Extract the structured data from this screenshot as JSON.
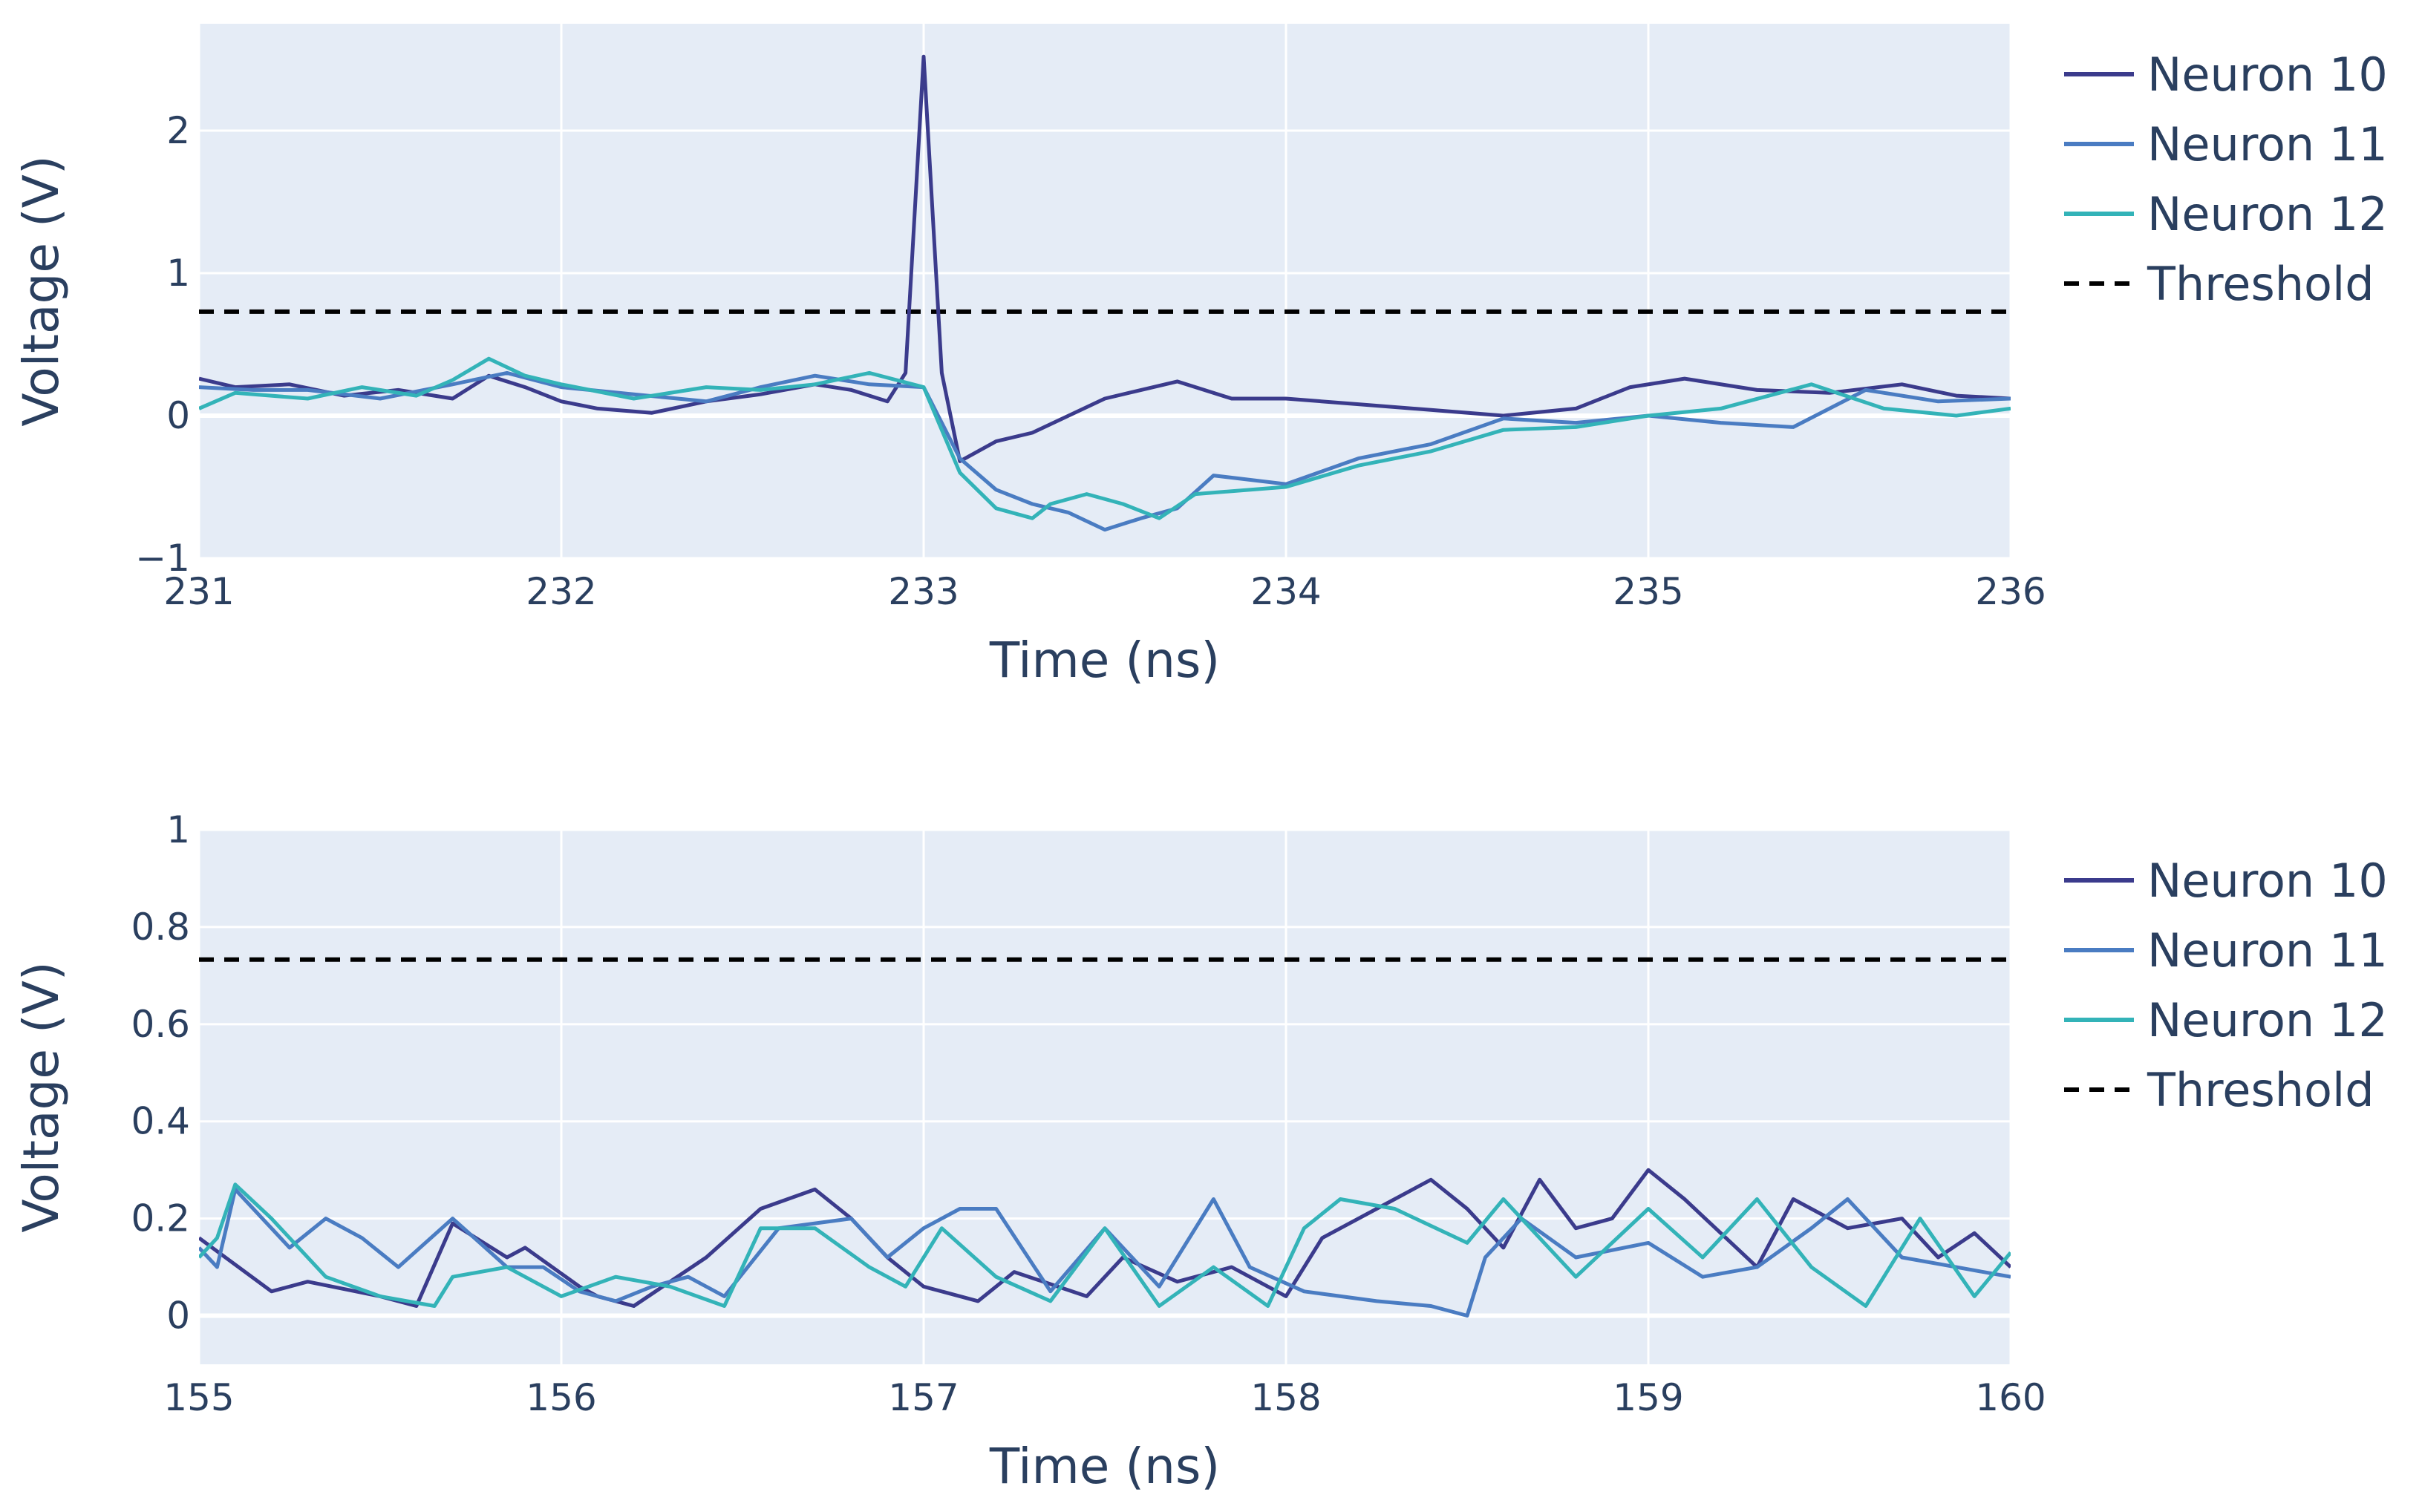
{
  "colors": {
    "plot_bg": "#e5ecf6",
    "grid": "#ffffff",
    "text": "#2a3f5f",
    "neuron_10": "#3b3b8c",
    "neuron_11": "#4a7cc2",
    "neuron_12": "#33b3b8",
    "threshold": "#000000"
  },
  "chart_data": [
    {
      "type": "line",
      "xlabel": "Time (ns)",
      "ylabel": "Voltage (V)",
      "xlim": [
        231,
        236
      ],
      "ylim": [
        -1,
        2.75
      ],
      "xticks": [
        231,
        232,
        233,
        234,
        235,
        236
      ],
      "xtick_labels": [
        "231",
        "232",
        "233",
        "234",
        "235",
        "236"
      ],
      "yticks": [
        -1,
        0,
        1,
        2
      ],
      "ytick_labels": [
        "−1",
        "0",
        "1",
        "2"
      ],
      "grid": true,
      "legend_position": "top-right-outside",
      "threshold": {
        "name": "Threshold",
        "value": 0.73,
        "style": "dashed"
      },
      "series": [
        {
          "name": "Neuron 10",
          "color_key": "neuron_10",
          "x": [
            231.0,
            231.1,
            231.25,
            231.4,
            231.55,
            231.7,
            231.8,
            231.9,
            232.0,
            232.1,
            232.25,
            232.4,
            232.55,
            232.7,
            232.8,
            232.9,
            232.95,
            233.0,
            233.05,
            233.1,
            233.2,
            233.3,
            233.4,
            233.5,
            233.6,
            233.7,
            233.85,
            234.0,
            234.2,
            234.4,
            234.6,
            234.8,
            234.95,
            235.1,
            235.3,
            235.5,
            235.7,
            235.85,
            236.0
          ],
          "y": [
            0.26,
            0.2,
            0.22,
            0.14,
            0.18,
            0.12,
            0.28,
            0.2,
            0.1,
            0.05,
            0.02,
            0.1,
            0.15,
            0.22,
            0.18,
            0.1,
            0.3,
            2.52,
            0.3,
            -0.32,
            -0.18,
            -0.12,
            0.0,
            0.12,
            0.18,
            0.24,
            0.12,
            0.12,
            0.08,
            0.04,
            0.0,
            0.05,
            0.2,
            0.26,
            0.18,
            0.16,
            0.22,
            0.14,
            0.12
          ]
        },
        {
          "name": "Neuron 11",
          "color_key": "neuron_11",
          "x": [
            231.0,
            231.15,
            231.3,
            231.5,
            231.7,
            231.85,
            232.0,
            232.2,
            232.4,
            232.55,
            232.7,
            232.85,
            233.0,
            233.1,
            233.2,
            233.3,
            233.4,
            233.5,
            233.6,
            233.7,
            233.8,
            234.0,
            234.2,
            234.4,
            234.6,
            234.8,
            235.0,
            235.2,
            235.4,
            235.6,
            235.8,
            236.0
          ],
          "y": [
            0.2,
            0.18,
            0.18,
            0.12,
            0.22,
            0.3,
            0.2,
            0.15,
            0.1,
            0.2,
            0.28,
            0.22,
            0.2,
            -0.3,
            -0.52,
            -0.62,
            -0.68,
            -0.8,
            -0.72,
            -0.65,
            -0.42,
            -0.48,
            -0.3,
            -0.2,
            -0.02,
            -0.05,
            0.0,
            -0.05,
            -0.08,
            0.18,
            0.1,
            0.12
          ]
        },
        {
          "name": "Neuron 12",
          "color_key": "neuron_12",
          "x": [
            231.0,
            231.1,
            231.3,
            231.45,
            231.6,
            231.7,
            231.8,
            231.9,
            232.0,
            232.2,
            232.4,
            232.55,
            232.7,
            232.85,
            233.0,
            233.1,
            233.2,
            233.3,
            233.35,
            233.45,
            233.55,
            233.65,
            233.75,
            234.0,
            234.2,
            234.4,
            234.6,
            234.8,
            235.0,
            235.2,
            235.45,
            235.65,
            235.85,
            236.0
          ],
          "y": [
            0.05,
            0.16,
            0.12,
            0.2,
            0.14,
            0.25,
            0.4,
            0.28,
            0.22,
            0.12,
            0.2,
            0.18,
            0.22,
            0.3,
            0.2,
            -0.4,
            -0.65,
            -0.72,
            -0.62,
            -0.55,
            -0.62,
            -0.72,
            -0.55,
            -0.5,
            -0.35,
            -0.25,
            -0.1,
            -0.08,
            0.0,
            0.05,
            0.22,
            0.05,
            0.0,
            0.05
          ]
        }
      ]
    },
    {
      "type": "line",
      "xlabel": "Time (ns)",
      "ylabel": "Voltage (V)",
      "xlim": [
        155,
        160
      ],
      "ylim": [
        -0.1,
        1.0
      ],
      "xticks": [
        155,
        156,
        157,
        158,
        159,
        160
      ],
      "xtick_labels": [
        "155",
        "156",
        "157",
        "158",
        "159",
        "160"
      ],
      "yticks": [
        0,
        0.2,
        0.4,
        0.6,
        0.8,
        1
      ],
      "ytick_labels": [
        "0",
        "0.2",
        "0.4",
        "0.6",
        "0.8",
        "1"
      ],
      "grid": true,
      "legend_position": "top-right-outside",
      "threshold": {
        "name": "Threshold",
        "value": 0.733,
        "style": "dashed"
      },
      "series": [
        {
          "name": "Neuron 10",
          "color_key": "neuron_10",
          "x": [
            155.0,
            155.2,
            155.3,
            155.5,
            155.6,
            155.7,
            155.85,
            155.9,
            156.05,
            156.1,
            156.2,
            156.4,
            156.55,
            156.7,
            156.8,
            156.9,
            157.0,
            157.15,
            157.25,
            157.45,
            157.55,
            157.7,
            157.85,
            158.0,
            158.1,
            158.3,
            158.4,
            158.5,
            158.6,
            158.7,
            158.8,
            158.9,
            159.0,
            159.1,
            159.3,
            159.4,
            159.55,
            159.7,
            159.8,
            159.9,
            160.0
          ],
          "y": [
            0.16,
            0.05,
            0.07,
            0.04,
            0.02,
            0.19,
            0.12,
            0.14,
            0.06,
            0.04,
            0.02,
            0.12,
            0.22,
            0.26,
            0.2,
            0.12,
            0.06,
            0.03,
            0.09,
            0.04,
            0.12,
            0.07,
            0.1,
            0.04,
            0.16,
            0.24,
            0.28,
            0.22,
            0.14,
            0.28,
            0.18,
            0.2,
            0.3,
            0.24,
            0.1,
            0.24,
            0.18,
            0.2,
            0.12,
            0.17,
            0.1
          ]
        },
        {
          "name": "Neuron 11",
          "color_key": "neuron_11",
          "x": [
            155.0,
            155.05,
            155.1,
            155.25,
            155.35,
            155.45,
            155.55,
            155.7,
            155.85,
            155.95,
            156.05,
            156.15,
            156.25,
            156.35,
            156.45,
            156.6,
            156.8,
            156.9,
            157.0,
            157.1,
            157.2,
            157.35,
            157.5,
            157.65,
            157.8,
            157.9,
            158.05,
            158.25,
            158.4,
            158.5,
            158.55,
            158.65,
            158.8,
            159.0,
            159.15,
            159.3,
            159.45,
            159.55,
            159.7,
            159.85,
            160.0
          ],
          "y": [
            0.14,
            0.1,
            0.26,
            0.14,
            0.2,
            0.16,
            0.1,
            0.2,
            0.1,
            0.1,
            0.05,
            0.03,
            0.06,
            0.08,
            0.04,
            0.18,
            0.2,
            0.12,
            0.18,
            0.22,
            0.22,
            0.05,
            0.18,
            0.06,
            0.24,
            0.1,
            0.05,
            0.03,
            0.02,
            0.0,
            0.12,
            0.2,
            0.12,
            0.15,
            0.08,
            0.1,
            0.18,
            0.24,
            0.12,
            0.1,
            0.08
          ]
        },
        {
          "name": "Neuron 12",
          "color_key": "neuron_12",
          "x": [
            155.0,
            155.05,
            155.1,
            155.2,
            155.35,
            155.5,
            155.65,
            155.7,
            155.85,
            156.0,
            156.15,
            156.3,
            156.45,
            156.55,
            156.7,
            156.85,
            156.95,
            157.05,
            157.2,
            157.35,
            157.5,
            157.65,
            157.8,
            157.95,
            158.05,
            158.15,
            158.3,
            158.5,
            158.6,
            158.8,
            159.0,
            159.15,
            159.3,
            159.45,
            159.6,
            159.75,
            159.9,
            160.0
          ],
          "y": [
            0.12,
            0.16,
            0.27,
            0.2,
            0.08,
            0.04,
            0.02,
            0.08,
            0.1,
            0.04,
            0.08,
            0.06,
            0.02,
            0.18,
            0.18,
            0.1,
            0.06,
            0.18,
            0.08,
            0.03,
            0.18,
            0.02,
            0.1,
            0.02,
            0.18,
            0.24,
            0.22,
            0.15,
            0.24,
            0.08,
            0.22,
            0.12,
            0.24,
            0.1,
            0.02,
            0.2,
            0.04,
            0.13
          ]
        }
      ]
    }
  ]
}
